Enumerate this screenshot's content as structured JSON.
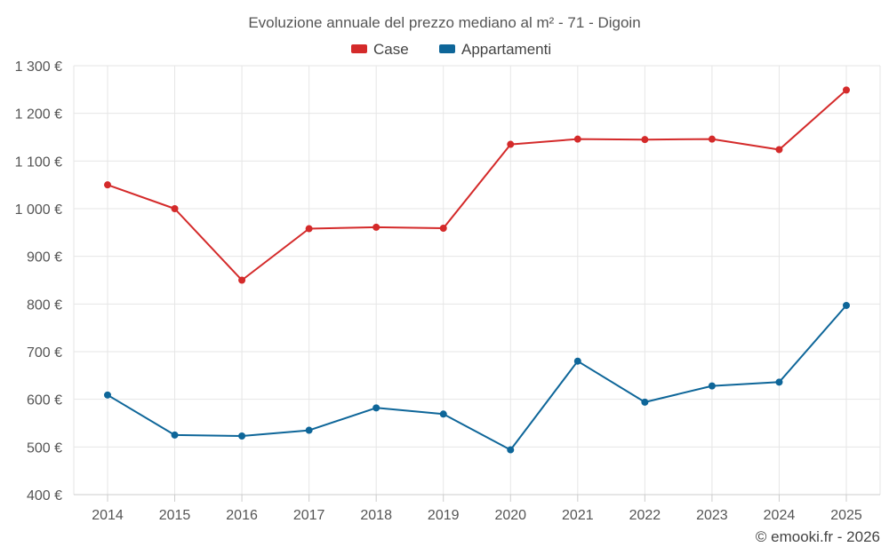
{
  "chart_data": {
    "type": "line",
    "title": "Evoluzione annuale del prezzo mediano al m² - 71 - Digoin",
    "categories": [
      "2014",
      "2015",
      "2016",
      "2017",
      "2018",
      "2019",
      "2020",
      "2021",
      "2022",
      "2023",
      "2024",
      "2025"
    ],
    "series": [
      {
        "name": "Case",
        "color": "#d42a2a",
        "values": [
          1050,
          1000,
          850,
          958,
          961,
          959,
          1135,
          1146,
          1145,
          1146,
          1124,
          1249
        ]
      },
      {
        "name": "Appartamenti",
        "color": "#0e6699",
        "values": [
          609,
          525,
          523,
          535,
          582,
          569,
          494,
          680,
          594,
          628,
          636,
          797
        ]
      }
    ],
    "ylim": [
      400,
      1300
    ],
    "yticks": [
      400,
      500,
      600,
      700,
      800,
      900,
      1000,
      1100,
      1200,
      1300
    ],
    "ytick_labels": [
      "400 €",
      "500 €",
      "600 €",
      "700 €",
      "800 €",
      "900 €",
      "1 000 €",
      "1 100 €",
      "1 200 €",
      "1 300 €"
    ],
    "xlabel": "",
    "ylabel": "",
    "grid": true,
    "legend_position": "top-center"
  },
  "credit": "© emooki.fr - 2026"
}
